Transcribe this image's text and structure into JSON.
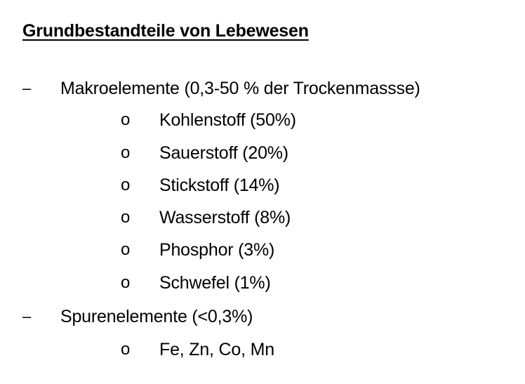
{
  "document": {
    "title": "Grundbestandteile von Lebewesen",
    "groups": [
      {
        "marker": "–",
        "label": "Makroelemente (0,3-50 % der Trockenmassse)",
        "items": [
          {
            "marker": "o",
            "label": "Kohlenstoff (50%)"
          },
          {
            "marker": "o",
            "label": "Sauerstoff (20%)"
          },
          {
            "marker": "o",
            "label": "Stickstoff (14%)"
          },
          {
            "marker": "o",
            "label": "Wasserstoff (8%)"
          },
          {
            "marker": "o",
            "label": "Phosphor (3%)"
          },
          {
            "marker": "o",
            "label": "Schwefel (1%)"
          }
        ]
      },
      {
        "marker": "–",
        "label": "Spurenelemente (<0,3%)",
        "items": [
          {
            "marker": "o",
            "label": "Fe, Zn, Co, Mn"
          }
        ]
      }
    ]
  }
}
